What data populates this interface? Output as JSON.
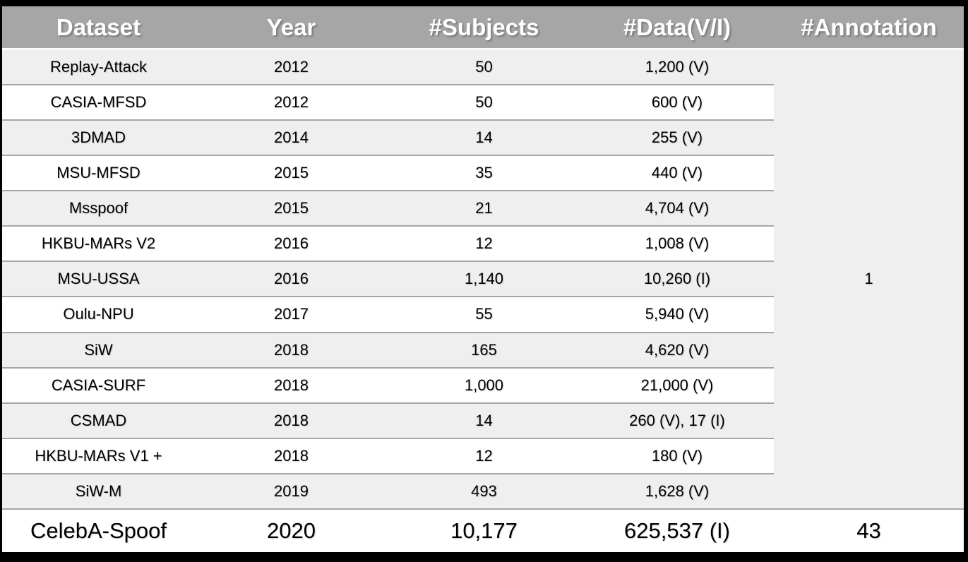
{
  "colors": {
    "frame_border": "#000000",
    "header_bg": "#a6a6a6",
    "header_text": "#ffffff",
    "row_alt_bg": "#efefef",
    "row_bg": "#ffffff",
    "divider": "#a6a6a6",
    "body_text": "#000000"
  },
  "chart_data": {
    "type": "table",
    "columns": [
      "Dataset",
      "Year",
      "#Subjects",
      "#Data(V/I)",
      "#Annotation"
    ],
    "rows": [
      {
        "dataset": "Replay-Attack",
        "year": "2012",
        "subjects": "50",
        "data": "1,200 (V)"
      },
      {
        "dataset": "CASIA-MFSD",
        "year": "2012",
        "subjects": "50",
        "data": "600 (V)"
      },
      {
        "dataset": "3DMAD",
        "year": "2014",
        "subjects": "14",
        "data": "255 (V)"
      },
      {
        "dataset": "MSU-MFSD",
        "year": "2015",
        "subjects": "35",
        "data": "440 (V)"
      },
      {
        "dataset": "Msspoof",
        "year": "2015",
        "subjects": "21",
        "data": "4,704 (V)"
      },
      {
        "dataset": "HKBU-MARs V2",
        "year": "2016",
        "subjects": "12",
        "data": "1,008 (V)"
      },
      {
        "dataset": "MSU-USSA",
        "year": "2016",
        "subjects": "1,140",
        "data": "10,260 (I)"
      },
      {
        "dataset": "Oulu-NPU",
        "year": "2017",
        "subjects": "55",
        "data": "5,940 (V)"
      },
      {
        "dataset": "SiW",
        "year": "2018",
        "subjects": "165",
        "data": "4,620 (V)"
      },
      {
        "dataset": "CASIA-SURF",
        "year": "2018",
        "subjects": "1,000",
        "data": "21,000 (V)"
      },
      {
        "dataset": "CSMAD",
        "year": "2018",
        "subjects": "14",
        "data": "260 (V), 17 (I)"
      },
      {
        "dataset": "HKBU-MARs V1 +",
        "year": "2018",
        "subjects": "12",
        "data": "180 (V)"
      },
      {
        "dataset": "SiW-M",
        "year": "2019",
        "subjects": "493",
        "data": "1,628 (V)"
      }
    ],
    "merged_annotation": "1",
    "highlight_row": {
      "dataset": "CelebA-Spoof",
      "year": "2020",
      "subjects": "10,177",
      "data": "625,537 (I)",
      "annotation": "43"
    }
  }
}
